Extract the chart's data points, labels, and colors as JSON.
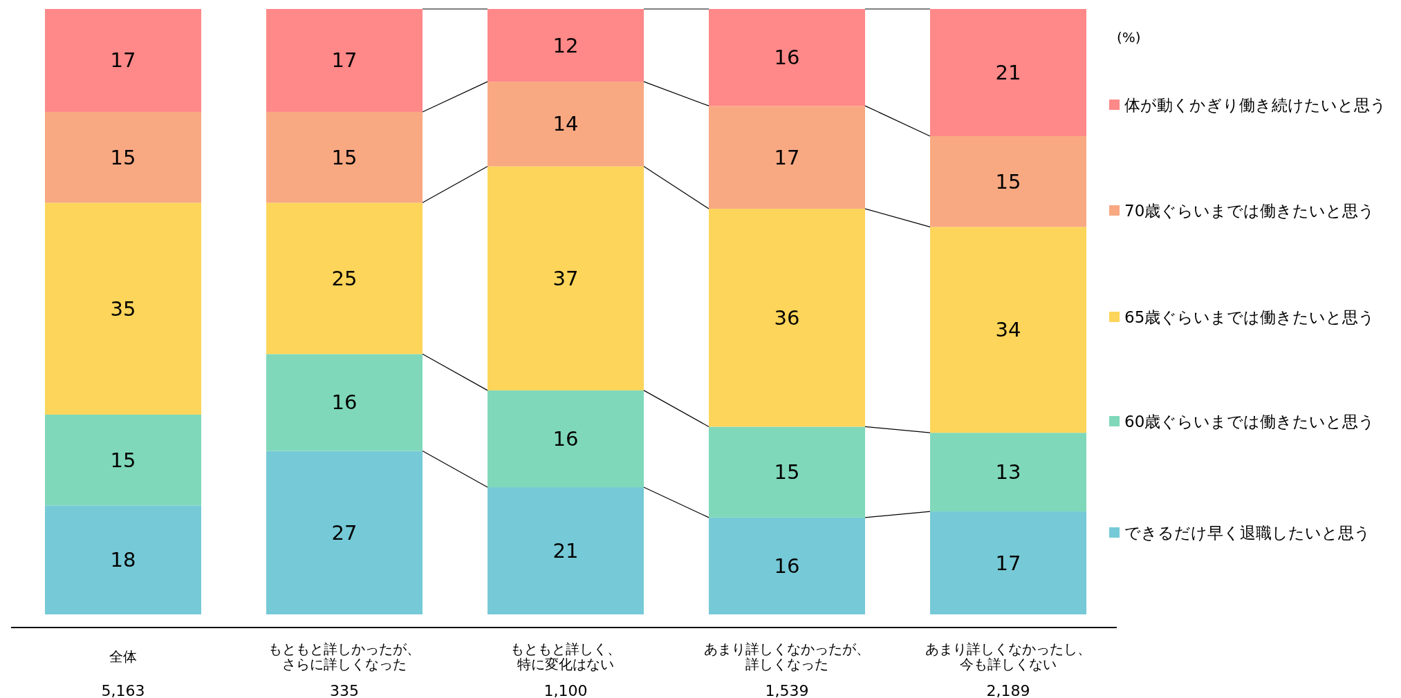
{
  "chart_data": {
    "type": "bar",
    "stacked": true,
    "data_labels": true,
    "legend": "right",
    "ylim": [
      0,
      100
    ],
    "ylabel": "(%)",
    "categories": [
      "全体",
      "もともと詳しかったが、さらに詳しくなった",
      "もともと詳しく、特に変化はない",
      "あまり詳しくなかったが、詳しくなった",
      "あまり詳しくなかったし、今も詳しくない"
    ],
    "annotations": [
      "5,163",
      "335",
      "1,100",
      "1,539",
      "2,189"
    ],
    "series": [
      {
        "name": "できるだけ早く退職したいと思う",
        "color": "#76c9d6",
        "values": [
          18,
          27,
          21,
          16,
          17
        ]
      },
      {
        "name": "60歳ぐらいまでは働きたいと思う",
        "color": "#7fd8b9",
        "values": [
          15,
          16,
          16,
          15,
          13
        ]
      },
      {
        "name": "65歳ぐらいまでは働きたいと思う",
        "color": "#fdd55a",
        "values": [
          35,
          25,
          37,
          36,
          34
        ]
      },
      {
        "name": "70歳ぐらいまでは働きたいと思う",
        "color": "#f8a982",
        "values": [
          15,
          15,
          14,
          17,
          15
        ]
      },
      {
        "name": "体が動くかぎり働き続けたいと思う",
        "color": "#ff8888",
        "values": [
          17,
          17,
          12,
          16,
          21
        ]
      }
    ]
  }
}
